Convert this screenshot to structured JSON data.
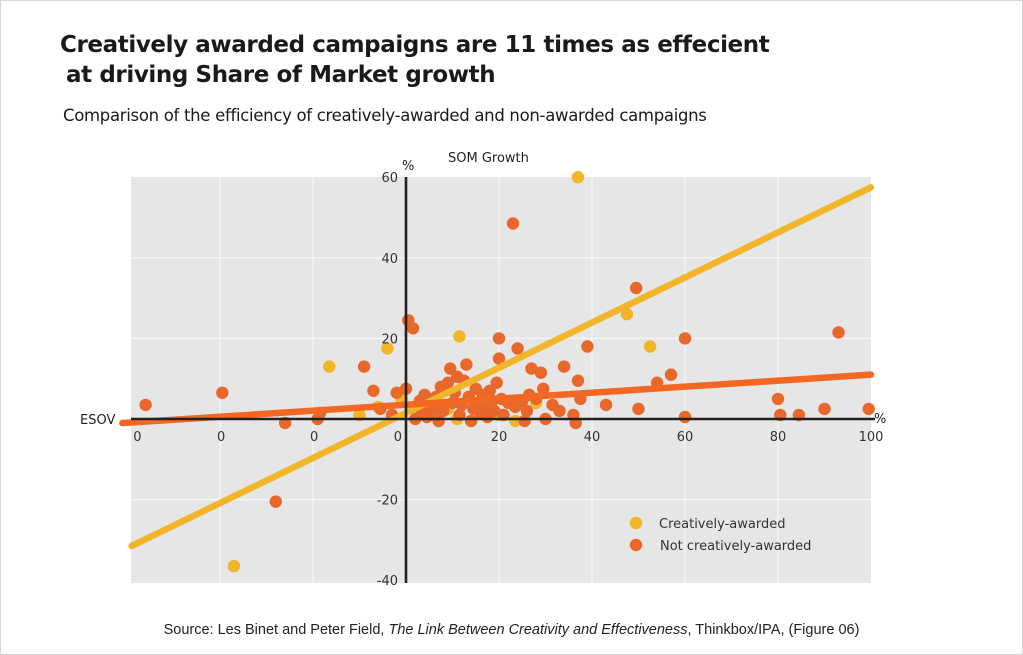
{
  "chart_data": {
    "type": "scatter",
    "title": "Creatively awarded campaigns are 11 times as effecient",
    "title_line2": "at driving Share of Market growth",
    "subtitle": "Comparison of the efficiency of creatively-awarded and non-awarded campaigns",
    "xlabel": "ESOV",
    "ylabel": "SOM Growth",
    "x_unit": "%",
    "y_unit": "%",
    "xlim": [
      -59,
      100
    ],
    "ylim": [
      -40,
      60
    ],
    "grid": true,
    "legend_position": "bottom-right",
    "x_ticks": [
      {
        "value": -58,
        "label": "0"
      },
      {
        "value": -40,
        "label": "0"
      },
      {
        "value": -20,
        "label": "0"
      },
      {
        "value": -2,
        "label": "0"
      },
      {
        "value": 20,
        "label": "20"
      },
      {
        "value": 40,
        "label": "40"
      },
      {
        "value": 60,
        "label": "60"
      },
      {
        "value": 80,
        "label": "80"
      },
      {
        "value": 100,
        "label": "100"
      }
    ],
    "x_gridlines": [
      -40,
      -20,
      0,
      20,
      40,
      60,
      80
    ],
    "y_ticks": [
      {
        "value": 60,
        "label": "60"
      },
      {
        "value": 40,
        "label": "40"
      },
      {
        "value": 20,
        "label": "20"
      },
      {
        "value": -20,
        "label": "-20"
      },
      {
        "value": -40,
        "label": "-40"
      }
    ],
    "y_gridlines": [
      40,
      20,
      -20
    ],
    "series": [
      {
        "name": "Creatively-awarded",
        "color": "#f0b528",
        "points": [
          [
            37,
            60
          ],
          [
            47.5,
            26
          ],
          [
            52.5,
            18
          ],
          [
            11.5,
            20.5
          ],
          [
            -16.5,
            13
          ],
          [
            -4,
            17.5
          ],
          [
            -37,
            -36.5
          ],
          [
            -10,
            1
          ],
          [
            -1,
            5
          ],
          [
            2.5,
            3
          ],
          [
            5,
            2
          ],
          [
            11,
            0
          ],
          [
            18,
            3
          ],
          [
            20,
            1
          ],
          [
            23.5,
            -0.5
          ],
          [
            9,
            2.5
          ],
          [
            14,
            4
          ],
          [
            -6,
            3
          ],
          [
            16,
            2
          ],
          [
            28,
            4
          ]
        ],
        "trend": {
          "x": [
            -59,
            100
          ],
          "y": [
            -31.5,
            57.5
          ]
        }
      },
      {
        "name": "Not creatively-awarded",
        "color": "#e8672a",
        "points": [
          [
            -56,
            3.5
          ],
          [
            -39.5,
            6.5
          ],
          [
            -28,
            -20.5
          ],
          [
            -26,
            -1
          ],
          [
            -19,
            0
          ],
          [
            -18.5,
            1.5
          ],
          [
            -9,
            13
          ],
          [
            -7,
            7
          ],
          [
            -5.5,
            2.5
          ],
          [
            -3,
            1
          ],
          [
            -2,
            6.5
          ],
          [
            0,
            7.5
          ],
          [
            0.5,
            24.5
          ],
          [
            1.5,
            22.5
          ],
          [
            2,
            0
          ],
          [
            3,
            4.5
          ],
          [
            3.5,
            2
          ],
          [
            4,
            6
          ],
          [
            4.5,
            0.5
          ],
          [
            5.5,
            1.5
          ],
          [
            6,
            3.5
          ],
          [
            6.5,
            5.5
          ],
          [
            7,
            -0.5
          ],
          [
            7.5,
            8
          ],
          [
            8,
            2
          ],
          [
            9,
            9
          ],
          [
            9.5,
            12.5
          ],
          [
            10,
            4
          ],
          [
            10.5,
            6.5
          ],
          [
            11,
            10.5
          ],
          [
            11.5,
            1
          ],
          [
            12,
            3.5
          ],
          [
            12.5,
            9.5
          ],
          [
            13,
            13.5
          ],
          [
            13.5,
            5.5
          ],
          [
            14,
            -0.5
          ],
          [
            14.5,
            2.5
          ],
          [
            15,
            7.5
          ],
          [
            15.5,
            4
          ],
          [
            16,
            1.5
          ],
          [
            16.5,
            6
          ],
          [
            17,
            3
          ],
          [
            17.5,
            0.5
          ],
          [
            18,
            7
          ],
          [
            18.5,
            4.5
          ],
          [
            19,
            2
          ],
          [
            19.5,
            9
          ],
          [
            20,
            20
          ],
          [
            20,
            15
          ],
          [
            20.5,
            5
          ],
          [
            21,
            1
          ],
          [
            22,
            4
          ],
          [
            23,
            48.5
          ],
          [
            23.5,
            3
          ],
          [
            24,
            17.5
          ],
          [
            25,
            4.5
          ],
          [
            25.5,
            -0.5
          ],
          [
            26,
            2
          ],
          [
            26.5,
            6
          ],
          [
            27,
            12.5
          ],
          [
            28,
            5
          ],
          [
            29,
            11.5
          ],
          [
            29.5,
            7.5
          ],
          [
            30,
            0
          ],
          [
            31.5,
            3.5
          ],
          [
            33,
            2
          ],
          [
            34,
            13
          ],
          [
            36,
            1
          ],
          [
            36.5,
            -1
          ],
          [
            37,
            9.5
          ],
          [
            37.5,
            5
          ],
          [
            39,
            18
          ],
          [
            43,
            3.5
          ],
          [
            49.5,
            32.5
          ],
          [
            50,
            2.5
          ],
          [
            54,
            9
          ],
          [
            57,
            11
          ],
          [
            60,
            20
          ],
          [
            60,
            0.5
          ],
          [
            80,
            5
          ],
          [
            80.5,
            1
          ],
          [
            84.5,
            1
          ],
          [
            90,
            2.5
          ],
          [
            93,
            21.5
          ],
          [
            99.5,
            2.5
          ]
        ],
        "trend": {
          "x": [
            -61,
            100
          ],
          "y": [
            -1,
            11
          ]
        }
      }
    ]
  },
  "source": {
    "prefix": "Source: Les Binet and Peter Field, ",
    "italic": "The Link Between Creativity and Effectiveness",
    "suffix": ", Thinkbox/IPA, (Figure 06)"
  },
  "legend": [
    {
      "label": "Creatively-awarded",
      "color": "#f0b528"
    },
    {
      "label": "Not creatively-awarded",
      "color": "#e8672a"
    }
  ]
}
